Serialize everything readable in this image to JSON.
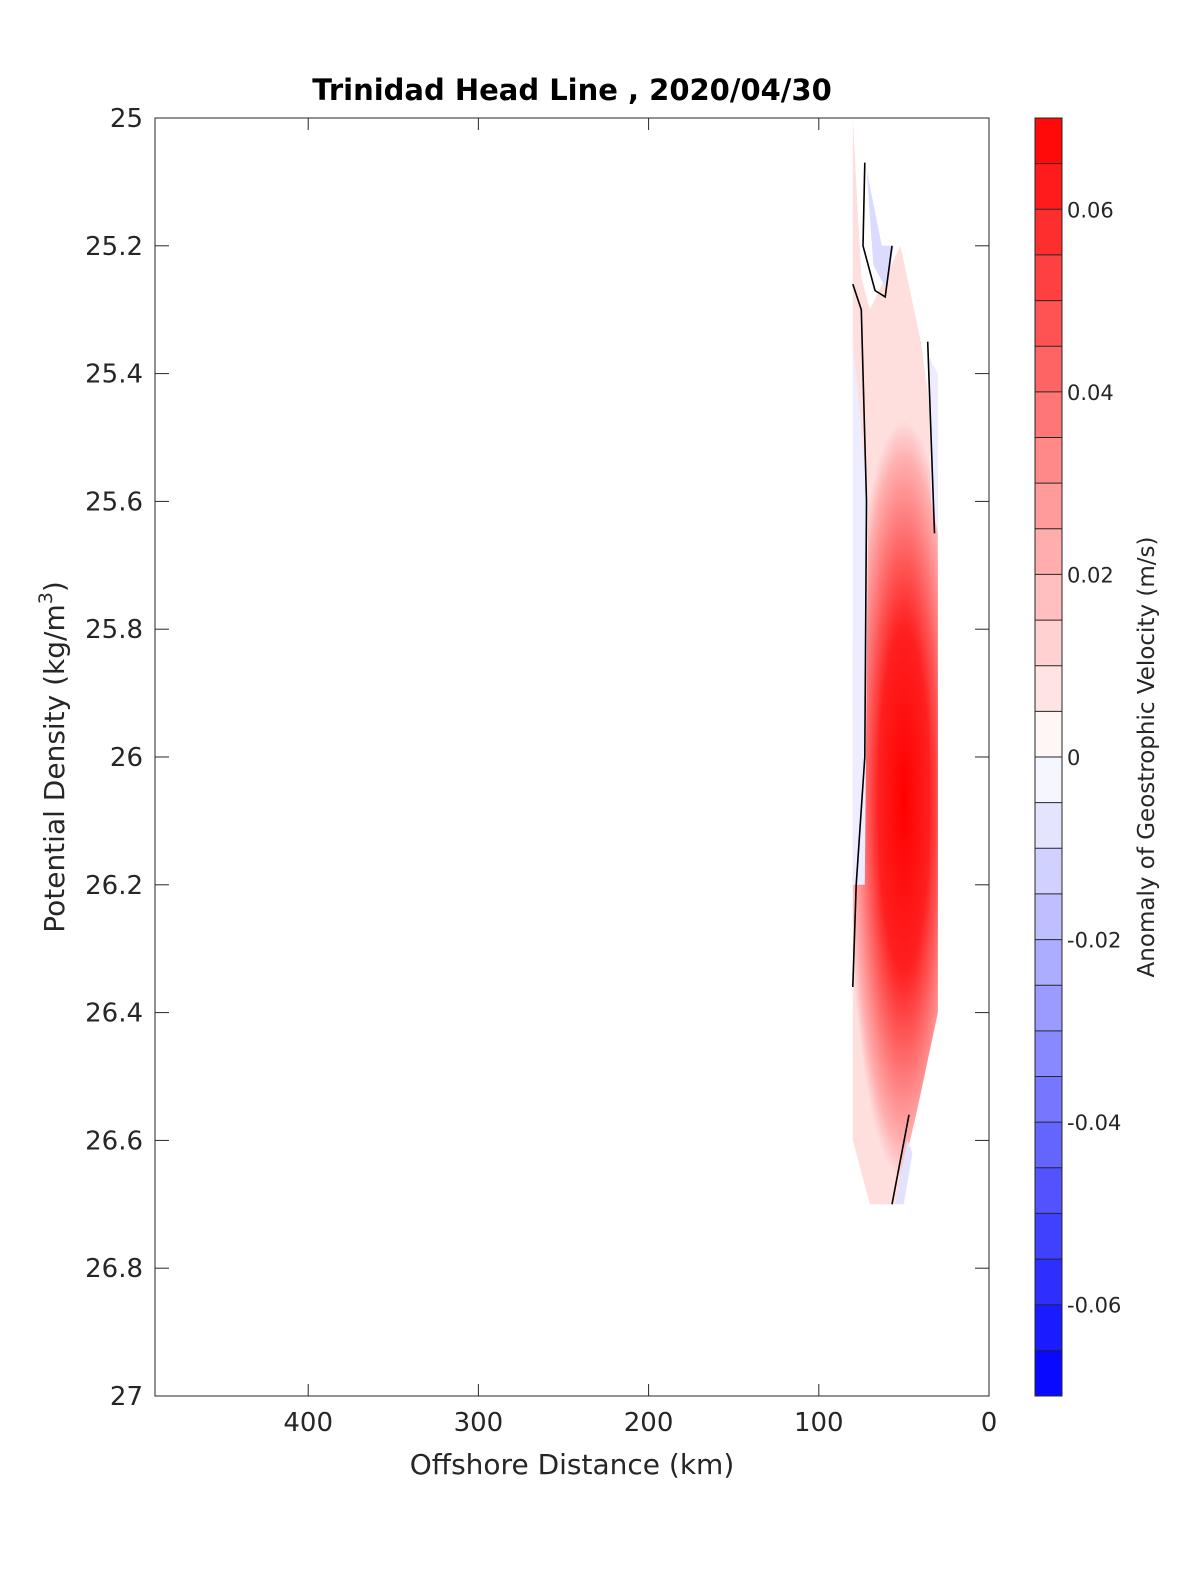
{
  "chart_data": {
    "type": "contour",
    "title": "Trinidad Head Line , 2020/04/30",
    "xlabel": "Offshore Distance (km)",
    "ylabel_main": "Potential Density (kg/m",
    "ylabel_sup": "3",
    "ylabel_close": ")",
    "x_reversed": true,
    "xlim": [
      490,
      0
    ],
    "ylim": [
      25,
      27
    ],
    "y_reversed": true,
    "x_ticks": [
      400,
      300,
      200,
      100,
      0
    ],
    "x_tick_labels": [
      "400",
      "300",
      "200",
      "100",
      "0"
    ],
    "y_ticks": [
      25,
      25.2,
      25.4,
      25.6,
      25.8,
      26,
      26.2,
      26.4,
      26.6,
      26.8,
      27
    ],
    "y_tick_labels": [
      "25",
      "25.2",
      "25.4",
      "25.6",
      "25.8",
      "26",
      "26.2",
      "26.4",
      "26.6",
      "26.8",
      "27"
    ],
    "grid": false,
    "colorbar": {
      "label": "Anomaly of Geostrophic Velocity (m/s)",
      "limits": [
        -0.07,
        0.07
      ],
      "level_step": 0.005,
      "ticks": [
        0.06,
        0.04,
        0.02,
        0,
        -0.02,
        -0.04,
        -0.06
      ],
      "tick_labels": [
        "0.06",
        "0.04",
        "0.02",
        "0",
        "-0.02",
        "-0.04",
        "-0.06"
      ],
      "color_positive": "#ff0000",
      "color_negative": "#0000ff",
      "color_zero": "#ffffff"
    },
    "features": [
      {
        "name": "positive core",
        "peak_value": 0.07,
        "center_km": 50,
        "center_density": 25.95,
        "outline": [
          [
            80,
            25.0
          ],
          [
            75,
            25.25
          ],
          [
            70,
            25.3
          ],
          [
            52,
            25.2
          ],
          [
            40,
            25.35
          ],
          [
            30,
            25.55
          ],
          [
            30,
            26.4
          ],
          [
            42,
            26.55
          ],
          [
            55,
            26.7
          ],
          [
            70,
            26.7
          ],
          [
            80,
            26.6
          ],
          [
            80,
            25.35
          ]
        ]
      },
      {
        "name": "negative lobe upper",
        "peak_value": -0.01,
        "outline": [
          [
            72,
            25.08
          ],
          [
            63,
            25.2
          ],
          [
            56,
            25.2
          ],
          [
            60,
            25.27
          ],
          [
            68,
            25.23
          ]
        ]
      },
      {
        "name": "negative strip left",
        "peak_value": -0.005,
        "outline": [
          [
            80,
            25.35
          ],
          [
            71,
            25.6
          ],
          [
            73,
            26.2
          ],
          [
            80,
            26.2
          ]
        ]
      },
      {
        "name": "negative strip right",
        "peak_value": -0.005,
        "outline": [
          [
            36,
            25.37
          ],
          [
            30,
            25.4
          ],
          [
            30,
            25.65
          ],
          [
            34,
            25.6
          ]
        ]
      },
      {
        "name": "negative lobe lower",
        "peak_value": -0.008,
        "outline": [
          [
            55,
            26.7
          ],
          [
            50,
            26.7
          ],
          [
            45,
            26.62
          ],
          [
            48,
            26.6
          ]
        ]
      }
    ],
    "zero_contours": [
      [
        [
          73,
          25.07
        ],
        [
          74,
          25.2
        ],
        [
          67,
          25.27
        ],
        [
          61,
          25.28
        ],
        [
          57,
          25.2
        ]
      ],
      [
        [
          80,
          25.26
        ],
        [
          75,
          25.3
        ],
        [
          72,
          25.6
        ],
        [
          73,
          26.0
        ],
        [
          78,
          26.2
        ],
        [
          80,
          26.36
        ]
      ],
      [
        [
          36,
          25.35
        ],
        [
          32,
          25.65
        ]
      ],
      [
        [
          57,
          26.7
        ],
        [
          47,
          26.56
        ]
      ]
    ]
  }
}
